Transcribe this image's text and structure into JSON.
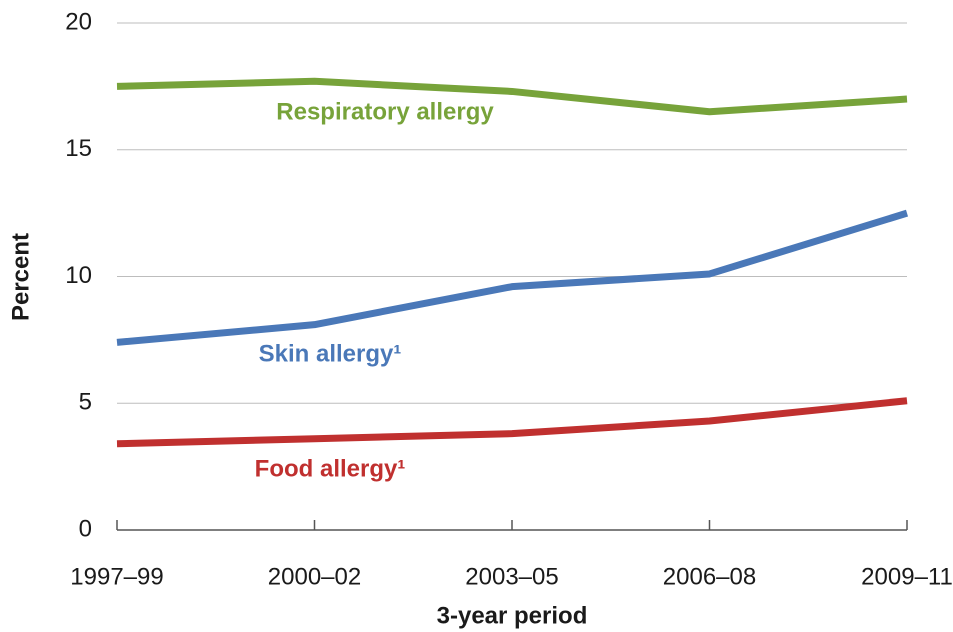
{
  "chart_data": {
    "type": "line",
    "x_label": "3-year period",
    "y_label": "Percent",
    "categories": [
      "1997–99",
      "2000–02",
      "2003–05",
      "2006–08",
      "2009–11"
    ],
    "series": [
      {
        "name": "Respiratory allergy",
        "color": "#77a33a",
        "values": [
          17.5,
          17.7,
          17.3,
          16.5,
          17.0
        ]
      },
      {
        "name": "Skin allergy¹",
        "color": "#4a78b8",
        "values": [
          7.4,
          8.1,
          9.6,
          10.1,
          12.5
        ]
      },
      {
        "name": "Food allergy¹",
        "color": "#c0302f",
        "values": [
          3.4,
          3.6,
          3.8,
          4.3,
          5.1
        ]
      }
    ],
    "ylim": [
      0,
      20
    ],
    "yticks": [
      0,
      5,
      10,
      15,
      20
    ],
    "grid": true
  }
}
